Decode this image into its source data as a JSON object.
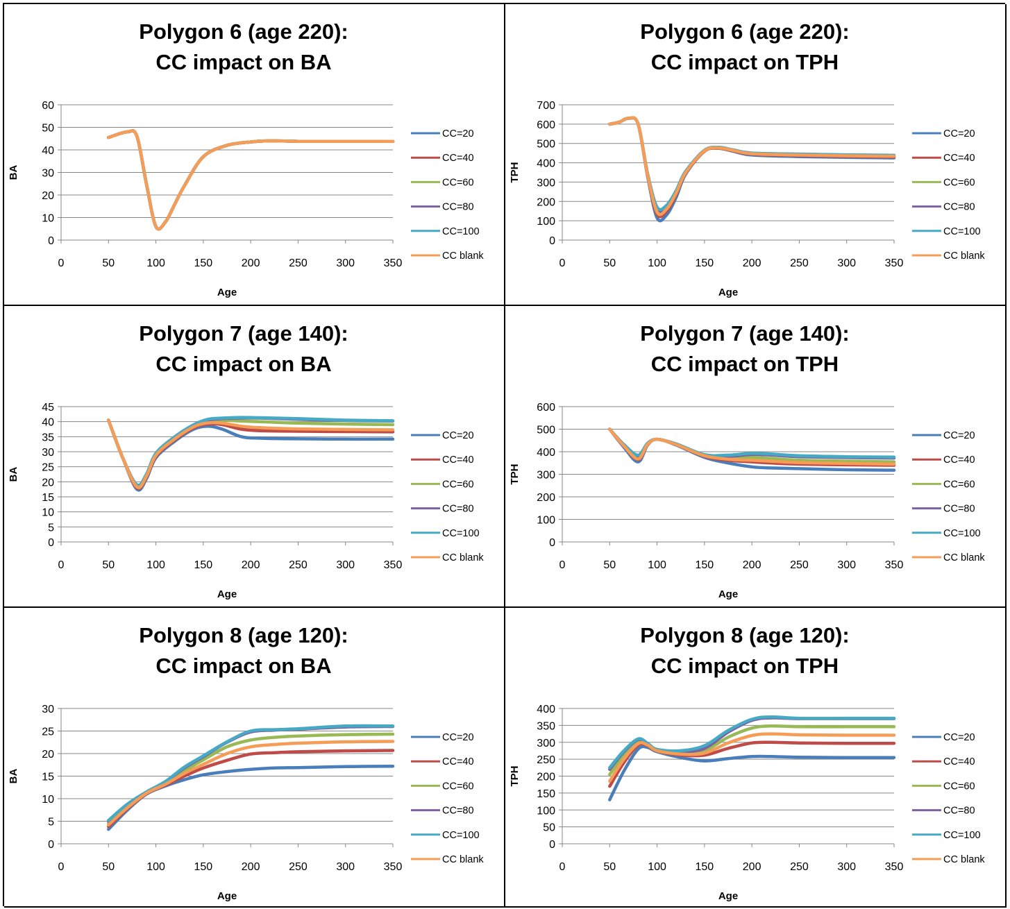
{
  "colors": {
    "CC=20": "#4a7ebb",
    "CC=40": "#be4b48",
    "CC=60": "#98b954",
    "CC=80": "#7d60a0",
    "CC=100": "#46aac5",
    "CC blank": "#f59d56"
  },
  "chart_data": [
    {
      "type": "line",
      "title_lines": [
        "Polygon 6 (age 220):",
        "CC impact on BA"
      ],
      "xlabel": "Age",
      "ylabel": "BA",
      "xlim": [
        0,
        350
      ],
      "xticks": [
        0,
        50,
        100,
        150,
        200,
        250,
        300,
        350
      ],
      "ylim": [
        0,
        60
      ],
      "yticks": [
        0,
        10,
        20,
        30,
        40,
        50,
        60
      ],
      "grid": true,
      "legend": "right",
      "x": [
        50,
        70,
        80,
        90,
        100,
        110,
        120,
        130,
        150,
        175,
        200,
        220,
        250,
        300,
        350
      ],
      "series": [
        {
          "name": "CC=20",
          "values": [
            45.5,
            48,
            46,
            25,
            6,
            8,
            16,
            24,
            37,
            42,
            43.5,
            44,
            43.8,
            43.8,
            43.8
          ]
        },
        {
          "name": "CC=40",
          "values": [
            45.5,
            48,
            46,
            25,
            6,
            8,
            16,
            24,
            37,
            42,
            43.5,
            44,
            43.8,
            43.8,
            43.8
          ]
        },
        {
          "name": "CC=60",
          "values": [
            45.5,
            48,
            46,
            25,
            6,
            8,
            16,
            24,
            37,
            42,
            43.5,
            44,
            43.8,
            43.8,
            43.8
          ]
        },
        {
          "name": "CC=80",
          "values": [
            45.5,
            48,
            46,
            25,
            6,
            8,
            16,
            24,
            37,
            42,
            43.5,
            44,
            43.8,
            43.8,
            43.8
          ]
        },
        {
          "name": "CC=100",
          "values": [
            45.5,
            48,
            46,
            25,
            6,
            8,
            16,
            24,
            37,
            42,
            43.5,
            44,
            43.8,
            43.8,
            43.8
          ]
        },
        {
          "name": "CC blank",
          "values": [
            45.5,
            48,
            46,
            25,
            6,
            8,
            16,
            24,
            37,
            42,
            43.5,
            44,
            43.8,
            43.8,
            43.8
          ]
        }
      ]
    },
    {
      "type": "line",
      "title_lines": [
        "Polygon 6 (age 220):",
        "CC impact on TPH"
      ],
      "xlabel": "Age",
      "ylabel": "TPH",
      "xlim": [
        0,
        350
      ],
      "xticks": [
        0,
        50,
        100,
        150,
        200,
        250,
        300,
        350
      ],
      "ylim": [
        0,
        700
      ],
      "yticks": [
        0,
        100,
        200,
        300,
        400,
        500,
        600,
        700
      ],
      "grid": true,
      "legend": "right",
      "x": [
        50,
        60,
        70,
        80,
        90,
        100,
        110,
        120,
        130,
        150,
        165,
        180,
        200,
        250,
        300,
        350
      ],
      "series": [
        {
          "name": "CC=20",
          "values": [
            600,
            610,
            630,
            600,
            330,
            115,
            130,
            220,
            340,
            460,
            475,
            460,
            440,
            432,
            428,
            425
          ]
        },
        {
          "name": "CC=40",
          "values": [
            600,
            610,
            630,
            600,
            335,
            135,
            150,
            235,
            345,
            460,
            475,
            462,
            445,
            437,
            433,
            430
          ]
        },
        {
          "name": "CC=60",
          "values": [
            600,
            610,
            630,
            600,
            340,
            150,
            165,
            245,
            350,
            462,
            477,
            465,
            448,
            442,
            438,
            436
          ]
        },
        {
          "name": "CC=80",
          "values": [
            600,
            610,
            630,
            600,
            340,
            160,
            172,
            250,
            353,
            463,
            478,
            466,
            450,
            444,
            440,
            438
          ]
        },
        {
          "name": "CC=100",
          "values": [
            600,
            610,
            630,
            600,
            345,
            170,
            180,
            255,
            355,
            465,
            480,
            467,
            450,
            445,
            441,
            439
          ]
        },
        {
          "name": "CC blank",
          "values": [
            600,
            610,
            630,
            600,
            338,
            145,
            160,
            242,
            348,
            462,
            477,
            464,
            447,
            440,
            436,
            434
          ]
        }
      ]
    },
    {
      "type": "line",
      "title_lines": [
        "Polygon 7 (age 140):",
        "CC impact on BA"
      ],
      "xlabel": "Age",
      "ylabel": "BA",
      "xlim": [
        0,
        350
      ],
      "xticks": [
        0,
        50,
        100,
        150,
        200,
        250,
        300,
        350
      ],
      "ylim": [
        0,
        45
      ],
      "yticks": [
        0,
        5,
        10,
        15,
        20,
        25,
        30,
        35,
        40,
        45
      ],
      "grid": true,
      "legend": "right",
      "x": [
        50,
        65,
        80,
        90,
        100,
        120,
        140,
        155,
        170,
        190,
        210,
        250,
        300,
        350
      ],
      "series": [
        {
          "name": "CC=20",
          "values": [
            40.5,
            28,
            17.5,
            21,
            28,
            33.5,
            37.5,
            38.5,
            37.5,
            35,
            34.5,
            34.3,
            34.2,
            34.2
          ]
        },
        {
          "name": "CC=40",
          "values": [
            40.5,
            28,
            18,
            21.5,
            28.5,
            34,
            38,
            39.2,
            39,
            37.5,
            37,
            36.8,
            36.7,
            36.6
          ]
        },
        {
          "name": "CC=60",
          "values": [
            40.5,
            28,
            18.5,
            22,
            29,
            34.5,
            38.5,
            40,
            40.5,
            40.2,
            40,
            39.5,
            39.2,
            39
          ]
        },
        {
          "name": "CC=80",
          "values": [
            40.5,
            28,
            18.8,
            22.2,
            29.2,
            34.7,
            38.8,
            40.5,
            41,
            41.2,
            41.2,
            40.8,
            40.4,
            40.2
          ]
        },
        {
          "name": "CC=100",
          "values": [
            40.5,
            28,
            19,
            22.5,
            29.5,
            35,
            39,
            40.8,
            41.2,
            41.4,
            41.3,
            41,
            40.5,
            40.3
          ]
        },
        {
          "name": "CC blank",
          "values": [
            40.5,
            28,
            18.3,
            21.8,
            28.8,
            34.3,
            38.3,
            39.6,
            39.5,
            38.5,
            38,
            37.6,
            37.4,
            37.3
          ]
        }
      ]
    },
    {
      "type": "line",
      "title_lines": [
        "Polygon 7 (age 140):",
        "CC impact on TPH"
      ],
      "xlabel": "Age",
      "ylabel": "TPH",
      "xlim": [
        0,
        350
      ],
      "xticks": [
        0,
        50,
        100,
        150,
        200,
        250,
        300,
        350
      ],
      "ylim": [
        0,
        600
      ],
      "yticks": [
        0,
        100,
        200,
        300,
        400,
        500,
        600
      ],
      "grid": true,
      "legend": "right",
      "x": [
        50,
        65,
        80,
        90,
        100,
        120,
        150,
        175,
        200,
        220,
        250,
        300,
        350
      ],
      "series": [
        {
          "name": "CC=20",
          "values": [
            500,
            420,
            355,
            430,
            455,
            430,
            375,
            350,
            333,
            328,
            325,
            320,
            318
          ]
        },
        {
          "name": "CC=40",
          "values": [
            500,
            425,
            365,
            432,
            455,
            432,
            380,
            362,
            355,
            350,
            345,
            342,
            340
          ]
        },
        {
          "name": "CC=60",
          "values": [
            500,
            428,
            372,
            434,
            455,
            433,
            383,
            373,
            375,
            370,
            362,
            358,
            355
          ]
        },
        {
          "name": "CC=80",
          "values": [
            500,
            430,
            378,
            436,
            455,
            434,
            385,
            380,
            388,
            385,
            378,
            374,
            372
          ]
        },
        {
          "name": "CC=100",
          "values": [
            500,
            432,
            385,
            438,
            455,
            435,
            387,
            385,
            393,
            390,
            382,
            378,
            376
          ]
        },
        {
          "name": "CC blank",
          "values": [
            500,
            426,
            368,
            433,
            455,
            432,
            382,
            367,
            362,
            358,
            352,
            348,
            345
          ]
        }
      ]
    },
    {
      "type": "line",
      "title_lines": [
        "Polygon 8 (age 120):",
        "CC impact on BA"
      ],
      "xlabel": "Age",
      "ylabel": "BA",
      "xlim": [
        0,
        350
      ],
      "xticks": [
        0,
        50,
        100,
        150,
        200,
        250,
        300,
        350
      ],
      "ylim": [
        0,
        30
      ],
      "yticks": [
        0,
        5,
        10,
        15,
        20,
        25,
        30
      ],
      "grid": true,
      "legend": "right",
      "x": [
        50,
        70,
        90,
        110,
        130,
        150,
        175,
        200,
        225,
        250,
        300,
        350
      ],
      "series": [
        {
          "name": "CC=20",
          "values": [
            3.2,
            7.5,
            11,
            12.8,
            14.2,
            15.3,
            16,
            16.5,
            16.8,
            16.9,
            17.1,
            17.2
          ]
        },
        {
          "name": "CC=40",
          "values": [
            3.8,
            7.8,
            11.1,
            13,
            15,
            16.8,
            18.5,
            19.9,
            20.2,
            20.4,
            20.6,
            20.7
          ]
        },
        {
          "name": "CC=60",
          "values": [
            4.6,
            8.3,
            11.3,
            13.5,
            16.2,
            18.6,
            21.5,
            23,
            23.6,
            23.9,
            24.2,
            24.3
          ]
        },
        {
          "name": "CC=80",
          "values": [
            5.0,
            8.6,
            11.4,
            13.7,
            16.8,
            19.3,
            22.5,
            24.8,
            25.2,
            25.4,
            25.9,
            26.0
          ]
        },
        {
          "name": "CC=100",
          "values": [
            5.2,
            8.8,
            11.5,
            13.8,
            17,
            19.5,
            22.6,
            25,
            25.3,
            25.5,
            26.1,
            26.1
          ]
        },
        {
          "name": "CC blank",
          "values": [
            4.2,
            8.0,
            11.2,
            13.2,
            15.6,
            17.6,
            20.0,
            21.5,
            22.0,
            22.3,
            22.6,
            22.7
          ]
        }
      ]
    },
    {
      "type": "line",
      "title_lines": [
        "Polygon 8 (age 120):",
        "CC impact on TPH"
      ],
      "xlabel": "Age",
      "ylabel": "TPH",
      "xlim": [
        0,
        350
      ],
      "xticks": [
        0,
        50,
        100,
        150,
        200,
        250,
        300,
        350
      ],
      "ylim": [
        0,
        400
      ],
      "yticks": [
        0,
        50,
        100,
        150,
        200,
        250,
        300,
        350,
        400
      ],
      "grid": true,
      "legend": "right",
      "x": [
        50,
        65,
        80,
        90,
        100,
        125,
        150,
        175,
        200,
        220,
        250,
        300,
        350
      ],
      "series": [
        {
          "name": "CC=20",
          "values": [
            130,
            215,
            280,
            285,
            272,
            255,
            245,
            252,
            258,
            258,
            256,
            255,
            255
          ]
        },
        {
          "name": "CC=40",
          "values": [
            170,
            240,
            292,
            290,
            274,
            262,
            262,
            282,
            298,
            300,
            298,
            297,
            297
          ]
        },
        {
          "name": "CC=60",
          "values": [
            205,
            262,
            302,
            294,
            276,
            268,
            275,
            315,
            342,
            348,
            346,
            346,
            346
          ]
        },
        {
          "name": "CC=80",
          "values": [
            220,
            272,
            308,
            296,
            278,
            272,
            282,
            330,
            365,
            372,
            370,
            370,
            370
          ]
        },
        {
          "name": "CC=100",
          "values": [
            225,
            275,
            310,
            297,
            279,
            275,
            290,
            335,
            368,
            375,
            371,
            371,
            371
          ]
        },
        {
          "name": "CC blank",
          "values": [
            185,
            250,
            296,
            292,
            275,
            265,
            268,
            298,
            320,
            325,
            322,
            321,
            321
          ]
        }
      ]
    }
  ]
}
